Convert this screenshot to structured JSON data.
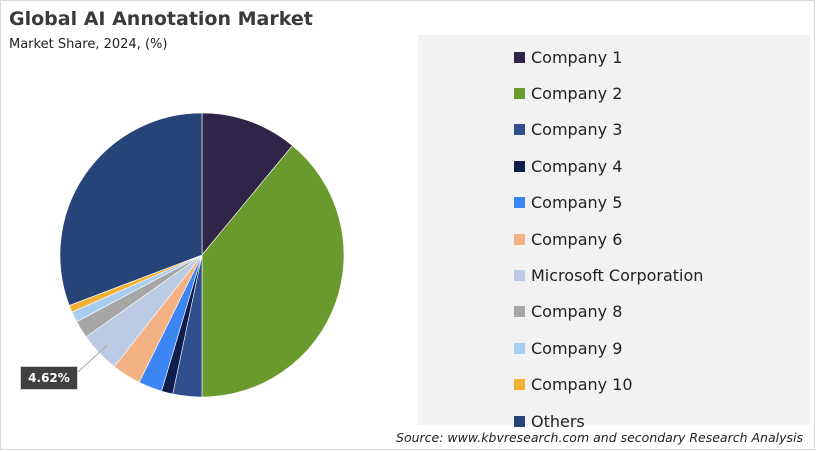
{
  "title": "Global AI Annotation Market",
  "subtitle": "Market Share, 2024, (%)",
  "source": "Source: www.kbvresearch.com and secondary Research Analysis",
  "chart_data": {
    "type": "pie",
    "title": "Global AI Annotation Market",
    "subtitle": "Market Share, 2024, (%)",
    "legend_position": "right",
    "slices": [
      {
        "label": "Company 1",
        "value": 11.0,
        "color": "#2e2548"
      },
      {
        "label": "Company 2",
        "value": 39.0,
        "color": "#6a9a2e"
      },
      {
        "label": "Company 3",
        "value": 3.3,
        "color": "#2f4f8f"
      },
      {
        "label": "Company 4",
        "value": 1.3,
        "color": "#0e1f4d"
      },
      {
        "label": "Company 5",
        "value": 2.7,
        "color": "#3c86f4"
      },
      {
        "label": "Company 6",
        "value": 3.3,
        "color": "#f4b183"
      },
      {
        "label": "Microsoft Corporation",
        "value": 4.62,
        "color": "#bccbe4"
      },
      {
        "label": "Company 8",
        "value": 2.0,
        "color": "#a6a6a6"
      },
      {
        "label": "Company 9",
        "value": 1.2,
        "color": "#a9cdf0"
      },
      {
        "label": "Company 10",
        "value": 0.8,
        "color": "#f2b134"
      },
      {
        "label": "Others",
        "value": 30.78,
        "color": "#274478"
      }
    ],
    "data_labels": [
      {
        "slice": "Microsoft Corporation",
        "text": "4.62%"
      }
    ]
  }
}
